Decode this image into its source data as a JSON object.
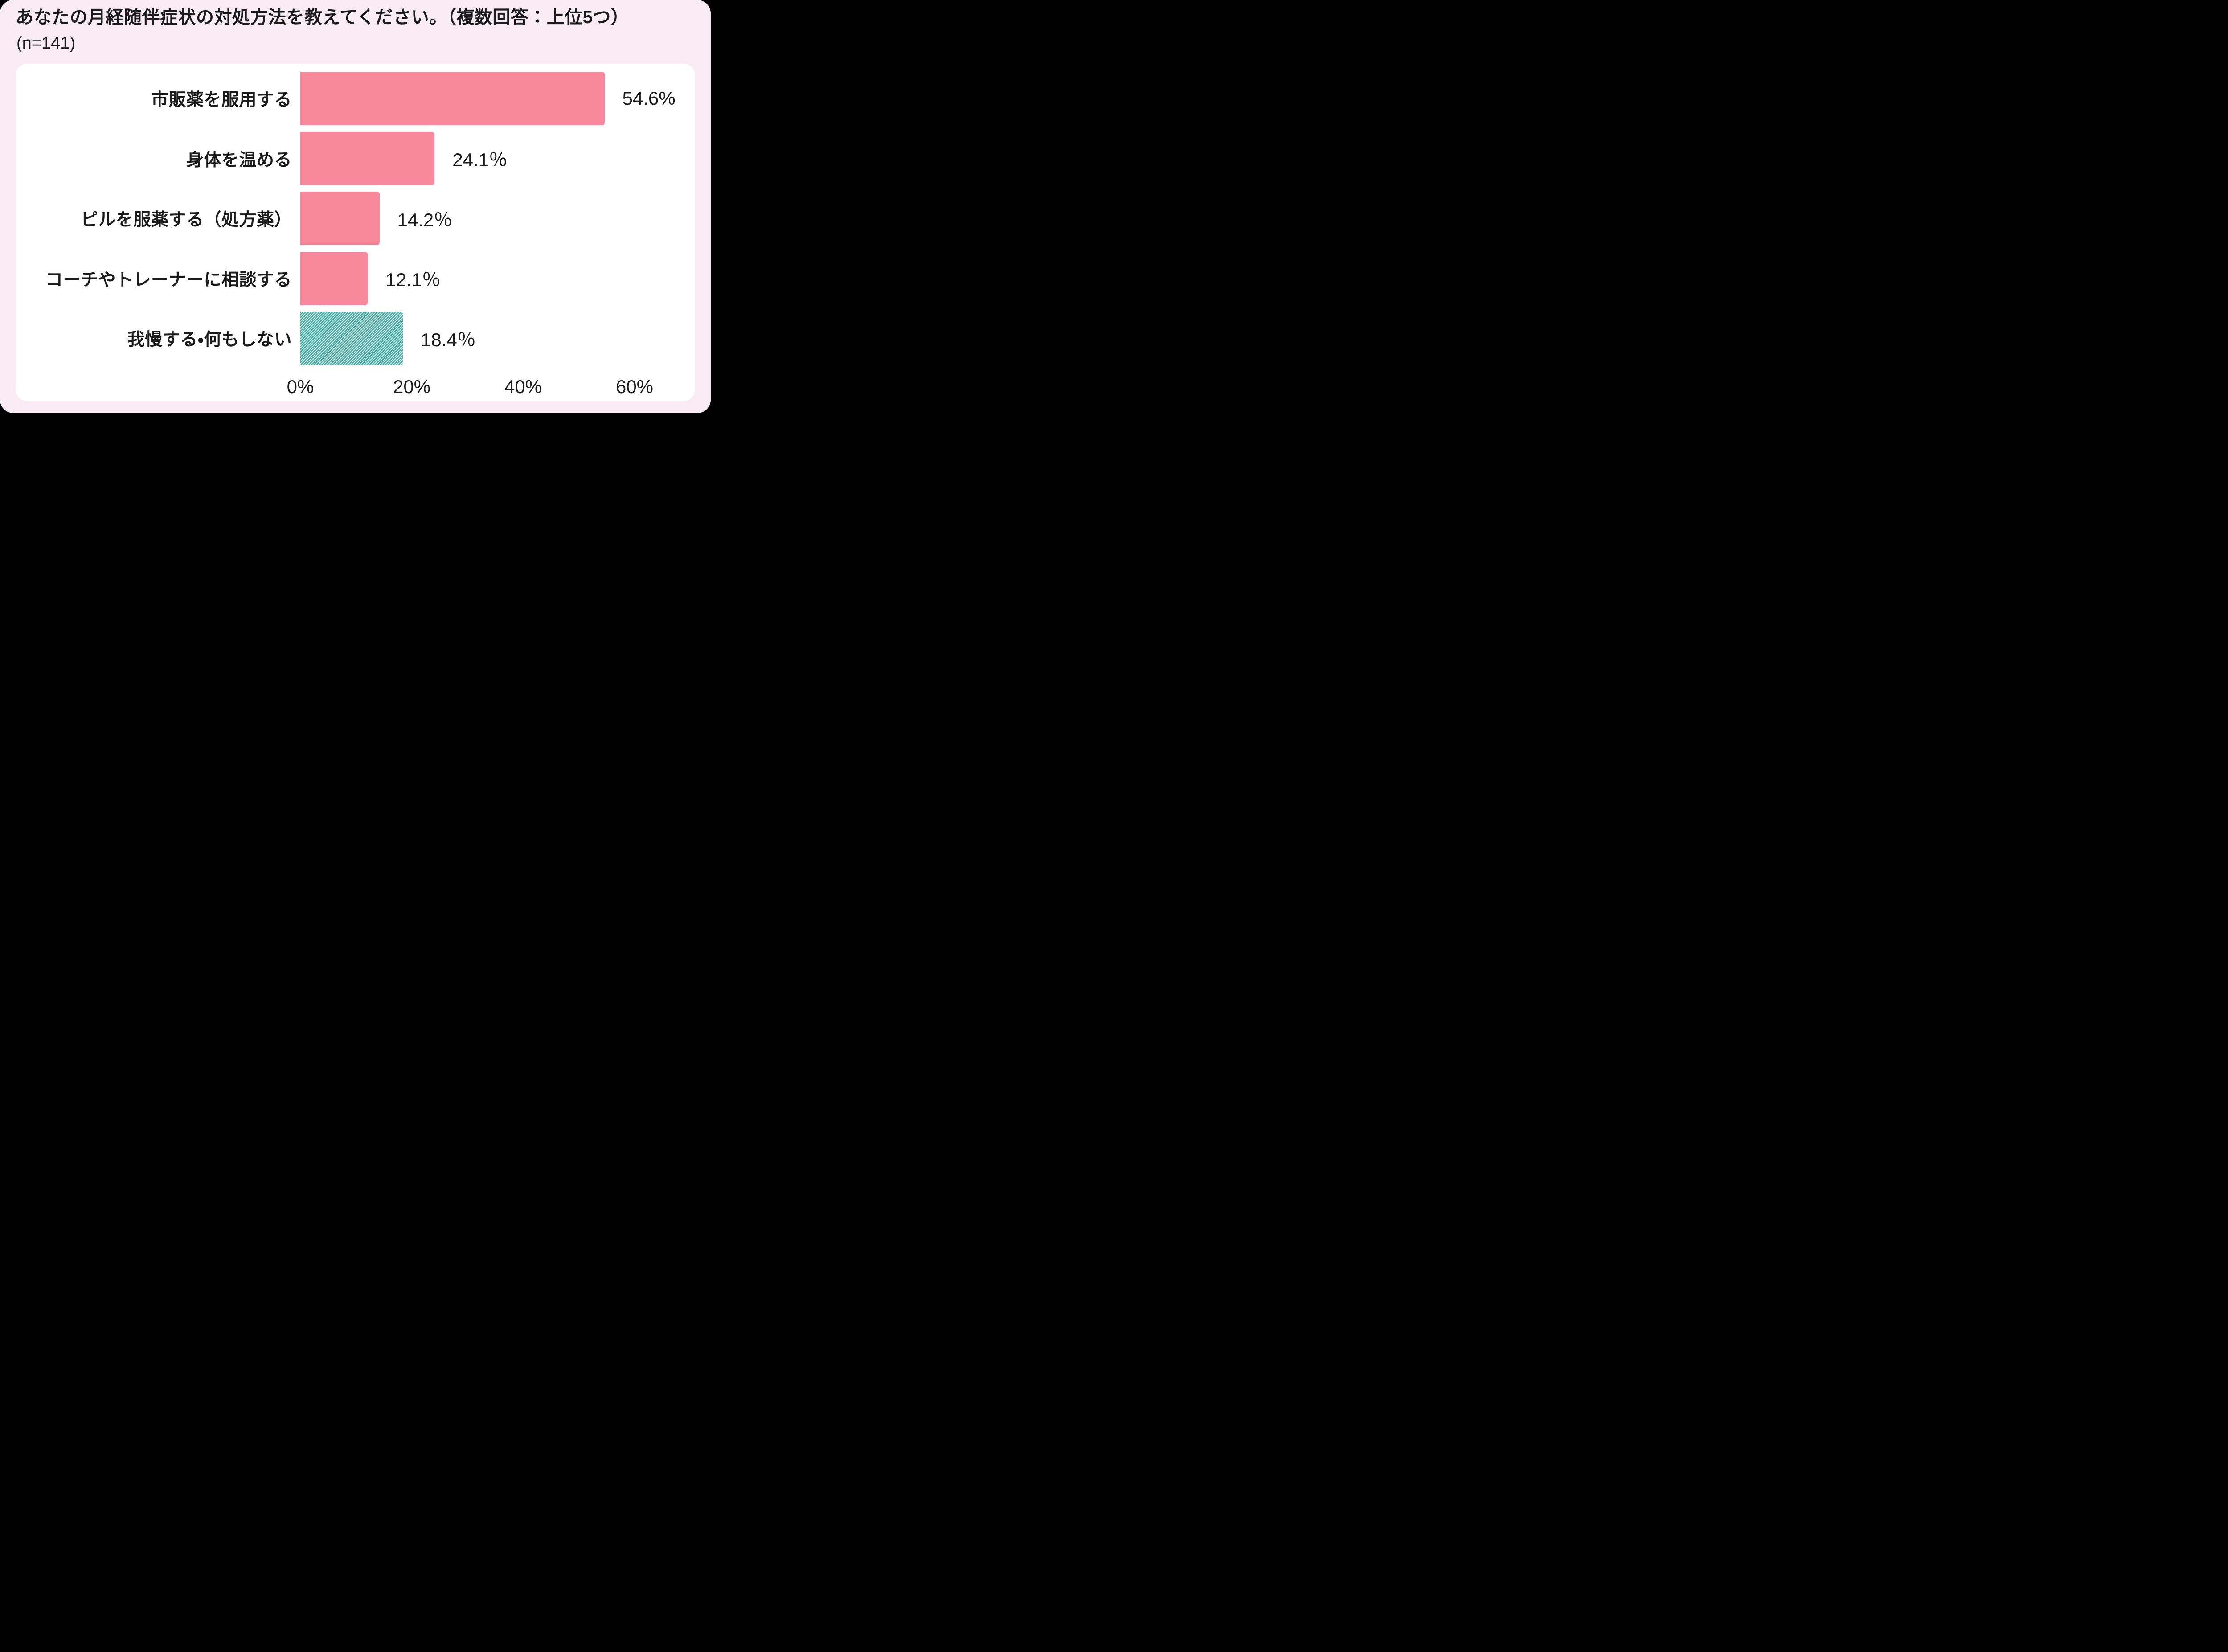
{
  "header": {
    "title": "あなたの月経随伴症状の対処方法を教えてください。（複数回答：上位5つ）",
    "sample_size": "(n=141)"
  },
  "chart_data": {
    "type": "bar",
    "orientation": "horizontal",
    "title": "あなたの月経随伴症状の対処方法を教えてください。（複数回答：上位5つ）",
    "subtitle": "(n=141)",
    "categories": [
      "市販薬を服用する",
      "身体を温める",
      "ピルを服薬する（処方薬）",
      "コーチやトレーナーに相談する",
      "我慢する・何もしない"
    ],
    "values": [
      54.6,
      24.1,
      14.2,
      12.1,
      18.4
    ],
    "value_labels": [
      "54.6%",
      "24.1％",
      "14.2％",
      "12.1％",
      "18.4％"
    ],
    "bar_styles": [
      "solid",
      "solid",
      "solid",
      "solid",
      "hatched"
    ],
    "x_tick_values": [
      0,
      20,
      40,
      60
    ],
    "x_tick_labels": [
      "0%",
      "20%",
      "40%",
      "60%"
    ],
    "xlim": [
      0,
      60
    ],
    "grid": false,
    "legend": "none"
  },
  "colors": {
    "card_background": "#F8EBF4",
    "panel_background": "#FFFFFF",
    "bar_pink": "#F7879A",
    "bar_teal": "#4BA8A1",
    "bar_teal_stripe": "#CBEBE7",
    "text": "#1B1B1B"
  }
}
